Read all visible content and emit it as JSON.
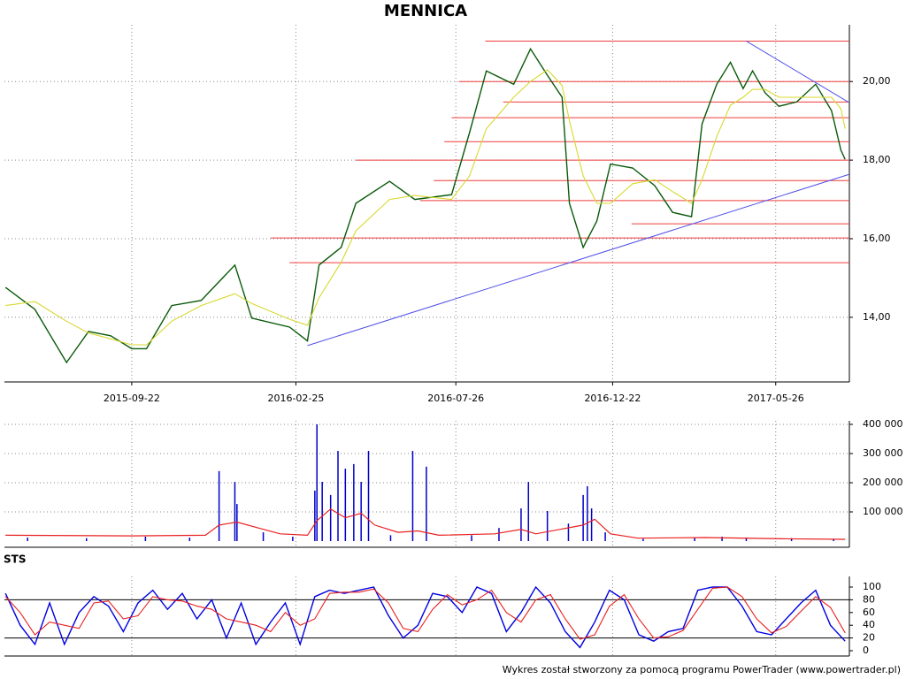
{
  "chart_data": [
    {
      "type": "line",
      "title": "MENNICA",
      "xlim": [
        "2015-05-24",
        "2017-08-04"
      ],
      "xticks": [
        "2015-09-22",
        "2016-02-25",
        "2016-07-26",
        "2016-12-22",
        "2017-05-26"
      ],
      "ylim": [
        12.4,
        21.4
      ],
      "yticks": [
        {
          "value": 14,
          "label": "14,00"
        },
        {
          "value": 16,
          "label": "16,00"
        },
        {
          "value": 18,
          "label": "18,00"
        },
        {
          "value": 20,
          "label": "20,00"
        }
      ],
      "grid": true,
      "x": [
        "2015-05-25",
        "2015-06-22",
        "2015-07-22",
        "2015-08-12",
        "2015-09-02",
        "2015-09-22",
        "2015-10-06",
        "2015-10-30",
        "2015-11-27",
        "2015-12-29",
        "2016-01-14",
        "2016-02-19",
        "2016-03-07",
        "2016-03-18",
        "2016-04-08",
        "2016-04-22",
        "2016-05-24",
        "2016-06-17",
        "2016-07-22",
        "2016-08-08",
        "2016-08-24",
        "2016-09-19",
        "2016-10-05",
        "2016-10-21",
        "2016-11-04",
        "2016-11-11",
        "2016-11-24",
        "2016-12-07",
        "2016-12-20",
        "2017-01-10",
        "2017-01-31",
        "2017-02-17",
        "2017-03-07",
        "2017-03-17",
        "2017-03-31",
        "2017-04-13",
        "2017-04-25",
        "2017-05-04",
        "2017-05-16",
        "2017-05-29",
        "2017-06-15",
        "2017-07-03",
        "2017-07-18",
        "2017-07-27",
        "2017-07-31"
      ],
      "series": [
        {
          "color": "#0a5a0a",
          "values": [
            14.76,
            14.2,
            12.85,
            13.64,
            13.53,
            13.2,
            13.2,
            14.3,
            14.43,
            15.33,
            13.98,
            13.75,
            13.4,
            15.33,
            15.78,
            16.9,
            17.46,
            17.0,
            17.12,
            18.7,
            20.27,
            19.93,
            20.83,
            20.16,
            19.6,
            16.9,
            15.78,
            16.45,
            17.9,
            17.8,
            17.35,
            16.67,
            16.56,
            18.92,
            19.93,
            20.49,
            19.82,
            20.27,
            19.71,
            19.37,
            19.48,
            19.93,
            19.26,
            18.25,
            18.02
          ]
        },
        {
          "color": "#d8d830",
          "values": [
            14.3,
            14.4,
            13.9,
            13.6,
            13.45,
            13.3,
            13.3,
            13.9,
            14.3,
            14.6,
            14.35,
            13.95,
            13.8,
            14.5,
            15.4,
            16.2,
            17.0,
            17.1,
            17.0,
            17.6,
            18.8,
            19.6,
            20.0,
            20.3,
            19.9,
            19.0,
            17.6,
            16.9,
            16.9,
            17.4,
            17.5,
            17.2,
            16.9,
            17.5,
            18.6,
            19.4,
            19.6,
            19.8,
            19.8,
            19.6,
            19.6,
            19.6,
            19.6,
            19.3,
            18.8
          ]
        }
      ],
      "levels_color": "#f03c3c",
      "levels": [
        {
          "x": "2016-08-23",
          "value": 21.03
        },
        {
          "x": "2016-07-29",
          "value": 20.0
        },
        {
          "x": "2016-09-09",
          "value": 19.48
        },
        {
          "x": "2016-07-22",
          "value": 19.08
        },
        {
          "x": "2016-07-15",
          "value": 18.47
        },
        {
          "x": "2016-04-22",
          "value": 18.0
        },
        {
          "x": "2016-07-05",
          "value": 17.48
        },
        {
          "x": "2016-06-22",
          "value": 16.97
        },
        {
          "x": "2017-01-09",
          "value": 16.38
        },
        {
          "x": "2016-02-01",
          "value": 16.02
        },
        {
          "x": "2016-02-19",
          "value": 15.39
        }
      ],
      "trend_color": "#5050e8",
      "trendlines": [
        {
          "x": [
            "2016-03-07",
            "2017-08-04"
          ],
          "values": [
            13.28,
            17.64
          ]
        },
        {
          "x": [
            "2017-04-28",
            "2017-08-04"
          ],
          "values": [
            21.03,
            19.46
          ]
        }
      ]
    },
    {
      "type": "bar",
      "ylim": [
        0,
        400000
      ],
      "yticks": [
        {
          "value": 100000,
          "label": "100 000"
        },
        {
          "value": 200000,
          "label": "200 000"
        },
        {
          "value": 300000,
          "label": "300 000"
        },
        {
          "value": 400000,
          "label": "400 000"
        }
      ],
      "color": "#0000c8",
      "x": [
        "2015-06-15",
        "2015-08-10",
        "2015-10-05",
        "2015-11-16",
        "2015-12-14",
        "2015-12-29",
        "2015-12-31",
        "2016-01-25",
        "2016-02-22",
        "2016-03-14",
        "2016-03-16",
        "2016-03-21",
        "2016-03-29",
        "2016-04-05",
        "2016-04-12",
        "2016-04-20",
        "2016-04-27",
        "2016-05-04",
        "2016-05-25",
        "2016-06-15",
        "2016-06-28",
        "2016-08-10",
        "2016-09-05",
        "2016-09-26",
        "2016-10-03",
        "2016-10-21",
        "2016-11-10",
        "2016-11-24",
        "2016-11-28",
        "2016-12-02",
        "2016-12-15",
        "2017-01-20",
        "2017-03-10",
        "2017-04-05",
        "2017-04-28",
        "2017-06-10",
        "2017-07-20"
      ],
      "values": [
        12000,
        10000,
        15000,
        12000,
        240000,
        203000,
        127000,
        30000,
        15000,
        173000,
        400000,
        203000,
        158000,
        309000,
        248000,
        264000,
        203000,
        309000,
        20000,
        309000,
        255000,
        20000,
        45000,
        112000,
        203000,
        103000,
        60000,
        158000,
        188000,
        112000,
        30000,
        8000,
        12000,
        15000,
        12000,
        10000,
        8000
      ],
      "average": {
        "color": "#e82020",
        "x": [
          "2015-05-25",
          "2015-09-22",
          "2015-12-01",
          "2015-12-14",
          "2015-12-31",
          "2016-01-20",
          "2016-02-10",
          "2016-03-07",
          "2016-03-16",
          "2016-03-29",
          "2016-04-12",
          "2016-04-27",
          "2016-05-10",
          "2016-06-01",
          "2016-06-20",
          "2016-07-10",
          "2016-09-01",
          "2016-09-26",
          "2016-10-10",
          "2016-11-24",
          "2016-12-05",
          "2016-12-20",
          "2017-01-15",
          "2017-03-20",
          "2017-06-01",
          "2017-07-31"
        ],
        "values": [
          20000,
          18000,
          20000,
          55000,
          65000,
          45000,
          25000,
          20000,
          70000,
          110000,
          80000,
          95000,
          55000,
          30000,
          35000,
          20000,
          25000,
          40000,
          25000,
          55000,
          75000,
          25000,
          10000,
          12000,
          8000,
          6000
        ]
      }
    },
    {
      "type": "line",
      "title": "STS",
      "ylim": [
        0,
        100
      ],
      "yticks": [
        0,
        20,
        40,
        60,
        80,
        100
      ],
      "levels": [
        20,
        80
      ],
      "x": [
        "2015-05-25",
        "2015-06-08",
        "2015-06-22",
        "2015-07-06",
        "2015-07-20",
        "2015-08-03",
        "2015-08-17",
        "2015-08-31",
        "2015-09-14",
        "2015-09-28",
        "2015-10-12",
        "2015-10-26",
        "2015-11-09",
        "2015-11-23",
        "2015-12-07",
        "2015-12-21",
        "2016-01-04",
        "2016-01-18",
        "2016-02-01",
        "2016-02-15",
        "2016-02-29",
        "2016-03-14",
        "2016-03-28",
        "2016-04-11",
        "2016-04-25",
        "2016-05-09",
        "2016-05-23",
        "2016-06-06",
        "2016-06-20",
        "2016-07-04",
        "2016-07-18",
        "2016-08-01",
        "2016-08-15",
        "2016-08-29",
        "2016-09-12",
        "2016-09-26",
        "2016-10-10",
        "2016-10-24",
        "2016-11-07",
        "2016-11-21",
        "2016-12-05",
        "2016-12-19",
        "2017-01-02",
        "2017-01-16",
        "2017-01-30",
        "2017-02-13",
        "2017-02-27",
        "2017-03-13",
        "2017-03-27",
        "2017-04-10",
        "2017-04-24",
        "2017-05-08",
        "2017-05-22",
        "2017-06-05",
        "2017-06-19",
        "2017-07-03",
        "2017-07-17",
        "2017-07-31"
      ],
      "series": [
        {
          "color": "#0000e0",
          "values": [
            90,
            40,
            10,
            75,
            10,
            60,
            85,
            70,
            30,
            75,
            95,
            65,
            90,
            50,
            80,
            20,
            75,
            10,
            45,
            75,
            10,
            85,
            95,
            90,
            95,
            100,
            55,
            20,
            40,
            90,
            85,
            60,
            100,
            90,
            30,
            60,
            100,
            75,
            30,
            5,
            45,
            95,
            80,
            25,
            15,
            30,
            35,
            95,
            100,
            100,
            70,
            30,
            25,
            50,
            75,
            95,
            40,
            15
          ]
        },
        {
          "color": "#e82020",
          "values": [
            85,
            60,
            25,
            45,
            40,
            35,
            75,
            78,
            50,
            55,
            85,
            80,
            78,
            70,
            65,
            50,
            45,
            40,
            30,
            60,
            40,
            50,
            90,
            92,
            92,
            97,
            75,
            35,
            30,
            65,
            88,
            72,
            80,
            95,
            60,
            45,
            80,
            88,
            50,
            18,
            25,
            70,
            88,
            50,
            20,
            22,
            32,
            65,
            98,
            100,
            85,
            50,
            28,
            38,
            62,
            85,
            68,
            28
          ]
        }
      ]
    }
  ],
  "footer": "Wykres został stworzony za pomocą programu PowerTrader (www.powertrader.pl)"
}
